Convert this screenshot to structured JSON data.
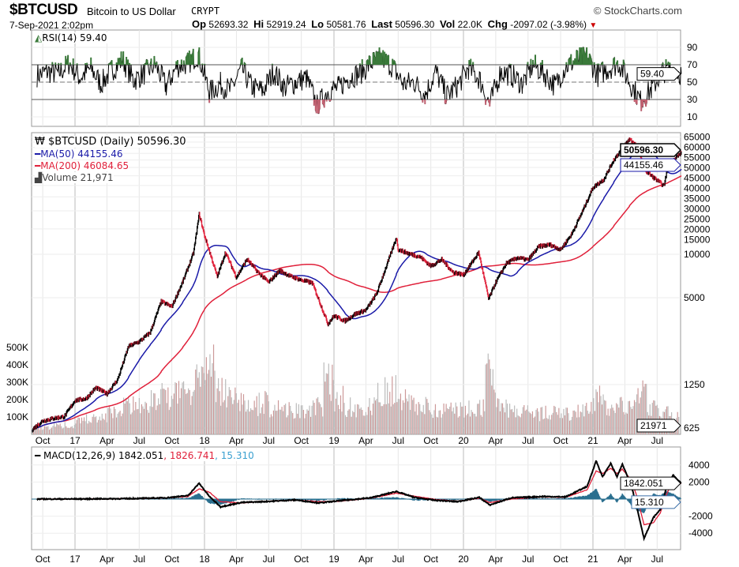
{
  "header": {
    "symbol": "$BTCUSD",
    "name": "Bitcoin to US Dollar",
    "exchange": "CRYPT",
    "brand": "© StockCharts.com",
    "date": "7-Sep-2021 2:02pm",
    "open_label": "Op",
    "open": "52693.32",
    "high_label": "Hi",
    "high": "52919.24",
    "low_label": "Lo",
    "low": "50581.76",
    "last_label": "Last",
    "last": "50596.30",
    "vol_label": "Vol",
    "vol": "22.0K",
    "chg_label": "Chg",
    "chg": "-2097.02 (-3.98%)",
    "down_arrow": "▼"
  },
  "legend": {
    "rsi": "RSI(14) 59.40",
    "price": "$BTCUSD (Daily) 50596.30",
    "ma50": "MA(50) 44155.46",
    "ma200": "MA(200) 46084.65",
    "volume": "Volume 21,971",
    "macd": "MACD(12,26,9) 1842.051",
    "macd_signal": ", 1826.741",
    "macd_hist": ", 15.310"
  },
  "colors": {
    "ma50": "#1a1aa8",
    "ma200": "#e0203a",
    "macd_hist": "#2a6f8f",
    "rsi_fill": "#3a7a3a",
    "up": "#000000",
    "down": "#e0203a"
  },
  "chart_data": [
    {
      "type": "line",
      "title": "RSI(14)",
      "ylim": [
        0,
        100
      ],
      "yticks": [
        "90",
        "70",
        "50",
        "30",
        "10"
      ],
      "ytick_values": [
        90,
        70,
        50,
        30,
        10
      ],
      "current_tag": "59.40",
      "dates": [
        "2016-09-15",
        "2016-10-15",
        "2016-11-15",
        "2016-12-15",
        "2017-01-15",
        "2017-02-15",
        "2017-03-15",
        "2017-04-15",
        "2017-05-15",
        "2017-06-15",
        "2017-07-15",
        "2017-08-15",
        "2017-09-15",
        "2017-10-15",
        "2017-11-15",
        "2017-12-15",
        "2018-01-15",
        "2018-02-15",
        "2018-03-15",
        "2018-04-15",
        "2018-05-15",
        "2018-06-15",
        "2018-07-15",
        "2018-08-15",
        "2018-09-15",
        "2018-10-15",
        "2018-11-15",
        "2018-12-15",
        "2019-01-15",
        "2019-02-15",
        "2019-03-15",
        "2019-04-15",
        "2019-05-15",
        "2019-06-15",
        "2019-07-15",
        "2019-08-15",
        "2019-09-15",
        "2019-10-15",
        "2019-11-15",
        "2019-12-15",
        "2020-01-15",
        "2020-02-15",
        "2020-03-15",
        "2020-04-15",
        "2020-05-15",
        "2020-06-15",
        "2020-07-15",
        "2020-08-15",
        "2020-09-15",
        "2020-10-15",
        "2020-11-15",
        "2020-12-15",
        "2021-01-15",
        "2021-02-15",
        "2021-03-15",
        "2021-04-15",
        "2021-05-15",
        "2021-06-15",
        "2021-07-15",
        "2021-08-15",
        "2021-09-07"
      ],
      "values": [
        58,
        62,
        60,
        72,
        55,
        66,
        48,
        64,
        76,
        52,
        60,
        70,
        45,
        68,
        72,
        82,
        38,
        48,
        40,
        66,
        44,
        40,
        62,
        44,
        50,
        55,
        22,
        40,
        44,
        56,
        60,
        72,
        78,
        68,
        48,
        50,
        36,
        62,
        34,
        46,
        66,
        54,
        24,
        62,
        58,
        48,
        70,
        60,
        46,
        68,
        76,
        80,
        58,
        66,
        72,
        50,
        28,
        42,
        62,
        66,
        59.4
      ]
    },
    {
      "type": "line",
      "title": "$BTCUSD (Daily)",
      "scale": "log",
      "yticks": [
        "65000",
        "60000",
        "55000",
        "50000",
        "45000",
        "40000",
        "35000",
        "30000",
        "25000",
        "20000",
        "15000",
        "10000",
        "5000",
        "1250",
        "625"
      ],
      "ytick_values": [
        65000,
        60000,
        55000,
        50000,
        45000,
        40000,
        35000,
        30000,
        25000,
        20000,
        15000,
        10000,
        5000,
        1250,
        625
      ],
      "xticks": [
        "Oct",
        "17",
        "Apr",
        "Jul",
        "Oct",
        "18",
        "Apr",
        "Jul",
        "Oct",
        "19",
        "Apr",
        "Jul",
        "Oct",
        "20",
        "Apr",
        "Jul",
        "Oct",
        "21",
        "Apr",
        "Jul"
      ],
      "xtick_dates": [
        "2016-10-01",
        "2017-01-01",
        "2017-04-01",
        "2017-07-01",
        "2017-10-01",
        "2018-01-01",
        "2018-04-01",
        "2018-07-01",
        "2018-10-01",
        "2019-01-01",
        "2019-04-01",
        "2019-07-01",
        "2019-10-01",
        "2020-01-01",
        "2020-04-01",
        "2020-07-01",
        "2020-10-01",
        "2021-01-01",
        "2021-04-01",
        "2021-07-01"
      ],
      "last_tag": "50596.30",
      "ma50_tag": "44155.46",
      "dates": [
        "2016-09-01",
        "2016-10-01",
        "2016-11-01",
        "2016-12-01",
        "2017-01-01",
        "2017-02-01",
        "2017-03-01",
        "2017-04-01",
        "2017-05-01",
        "2017-06-01",
        "2017-07-01",
        "2017-08-01",
        "2017-09-01",
        "2017-10-01",
        "2017-11-01",
        "2017-12-01",
        "2017-12-17",
        "2018-01-01",
        "2018-02-06",
        "2018-03-01",
        "2018-04-01",
        "2018-05-01",
        "2018-06-01",
        "2018-07-01",
        "2018-08-01",
        "2018-09-01",
        "2018-10-01",
        "2018-11-01",
        "2018-12-15",
        "2019-01-01",
        "2019-02-01",
        "2019-03-01",
        "2019-04-01",
        "2019-05-01",
        "2019-06-26",
        "2019-07-01",
        "2019-08-01",
        "2019-09-01",
        "2019-10-01",
        "2019-11-01",
        "2019-12-01",
        "2020-01-01",
        "2020-02-13",
        "2020-03-12",
        "2020-04-01",
        "2020-05-01",
        "2020-06-01",
        "2020-07-01",
        "2020-08-01",
        "2020-09-01",
        "2020-10-01",
        "2020-11-01",
        "2020-12-01",
        "2021-01-01",
        "2021-02-01",
        "2021-03-01",
        "2021-04-14",
        "2021-05-01",
        "2021-06-01",
        "2021-07-20",
        "2021-08-01",
        "2021-09-07"
      ],
      "close": [
        609,
        700,
        730,
        750,
        970,
        1000,
        1190,
        1080,
        1350,
        2300,
        2480,
        2870,
        4700,
        4340,
        6470,
        10200,
        19000,
        13500,
        7000,
        10300,
        6930,
        9240,
        7500,
        6400,
        7730,
        7030,
        6630,
        6320,
        3300,
        3740,
        3460,
        3850,
        4100,
        5320,
        13000,
        10800,
        10100,
        9600,
        8300,
        9200,
        7560,
        7200,
        10300,
        4900,
        6400,
        8650,
        9460,
        9140,
        11350,
        11650,
        10780,
        13800,
        19700,
        29000,
        33100,
        45200,
        63000,
        57700,
        37300,
        29800,
        41500,
        50596
      ]
    },
    {
      "type": "bar",
      "title": "Volume",
      "unit": "K",
      "yticks": [
        "500K",
        "400K",
        "300K",
        "200K",
        "100K"
      ],
      "ytick_values": [
        500,
        400,
        300,
        200,
        100
      ],
      "last_tag": "21971",
      "values": [
        40,
        45,
        60,
        70,
        90,
        110,
        120,
        150,
        200,
        230,
        180,
        250,
        280,
        300,
        330,
        420,
        470,
        300,
        260,
        220,
        200,
        230,
        190,
        180,
        170,
        160,
        200,
        380,
        260,
        200,
        180,
        220,
        300,
        320,
        240,
        220,
        200,
        160,
        180,
        170,
        180,
        200,
        440,
        210,
        190,
        160,
        140,
        150,
        150,
        140,
        160,
        170,
        260,
        200,
        200,
        190,
        300,
        180,
        150,
        120,
        60
      ]
    },
    {
      "type": "line",
      "title": "MACD(12,26,9)",
      "yticks": [
        "4000",
        "2000",
        "-2000",
        "-4000"
      ],
      "ytick_values": [
        4000,
        2000,
        -2000,
        -4000
      ],
      "macd_tag": "1842.051",
      "hist_tag": "15.310",
      "dates": [
        "2016-09-15",
        "2016-12-15",
        "2017-03-15",
        "2017-06-15",
        "2017-09-15",
        "2017-11-15",
        "2017-12-17",
        "2018-01-15",
        "2018-02-15",
        "2018-04-15",
        "2018-06-15",
        "2018-09-15",
        "2018-11-20",
        "2019-01-15",
        "2019-04-15",
        "2019-06-26",
        "2019-08-15",
        "2019-10-15",
        "2019-12-15",
        "2020-02-15",
        "2020-03-15",
        "2020-05-15",
        "2020-08-15",
        "2020-10-15",
        "2020-12-15",
        "2021-01-10",
        "2021-01-28",
        "2021-02-20",
        "2021-03-10",
        "2021-03-25",
        "2021-04-20",
        "2021-05-05",
        "2021-05-25",
        "2021-06-20",
        "2021-07-10",
        "2021-07-28",
        "2021-08-15",
        "2021-09-07"
      ],
      "macd": [
        5,
        10,
        30,
        60,
        150,
        400,
        1850,
        300,
        -900,
        -400,
        -300,
        -100,
        -450,
        -200,
        150,
        900,
        200,
        -150,
        -300,
        200,
        -700,
        150,
        300,
        250,
        1500,
        4500,
        2600,
        4200,
        2600,
        4100,
        1500,
        -1000,
        -4600,
        -2200,
        -1200,
        1500,
        2800,
        1842
      ],
      "signal": [
        3,
        8,
        25,
        50,
        120,
        300,
        1200,
        800,
        -300,
        -450,
        -280,
        -120,
        -300,
        -260,
        100,
        700,
        350,
        -50,
        -250,
        100,
        -400,
        0,
        250,
        200,
        1100,
        3300,
        3000,
        3600,
        3000,
        3500,
        2200,
        300,
        -3000,
        -2800,
        -1600,
        600,
        2200,
        1827
      ]
    }
  ]
}
